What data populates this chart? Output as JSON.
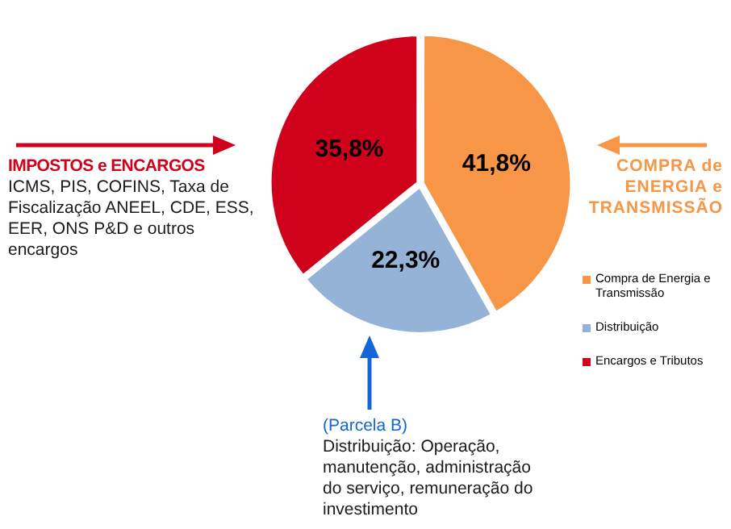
{
  "chart_data": {
    "type": "pie",
    "categories": [
      "Compra de Energia e Transmissão",
      "Distribuição",
      "Encargos e Tributos"
    ],
    "values": [
      41.8,
      22.3,
      35.8
    ],
    "colors": [
      "#f79646",
      "#95b3d7",
      "#d0021b"
    ],
    "value_labels": [
      "41,8%",
      "22,3%",
      "35,8%"
    ],
    "legend": "right",
    "annotations": [
      "IMPOSTOS e ENCARGOS",
      "ICMS, PIS, COFINS, Taxa de Fiscalização ANEEL, CDE, ESS, EER, ONS P&D e outros encargos",
      "COMPRA de ENERGIA e TRANSMISSÃO",
      "(Parcela B)",
      "Distribuição: Operação, manutenção, administração do serviço, remuneração do investimento"
    ]
  }
}
